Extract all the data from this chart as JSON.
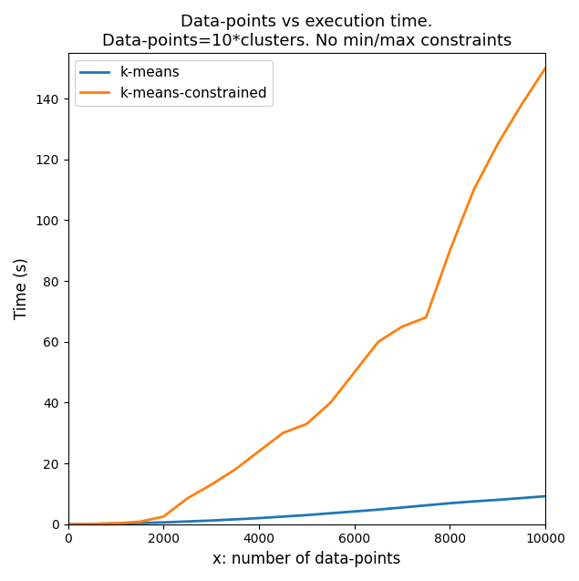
{
  "title": "Data-points vs execution time.\nData-points=10*clusters. No min/max constraints",
  "xlabel": "x: number of data-points",
  "ylabel": "Time (s)",
  "x_kmeans": [
    0,
    500,
    1000,
    1500,
    2000,
    2500,
    3000,
    3500,
    4000,
    4500,
    5000,
    5500,
    6000,
    6500,
    7000,
    7500,
    8000,
    8500,
    9000,
    9500,
    10000
  ],
  "y_kmeans": [
    0.0,
    0.1,
    0.2,
    0.4,
    0.6,
    0.9,
    1.2,
    1.6,
    2.0,
    2.5,
    3.0,
    3.6,
    4.2,
    4.8,
    5.5,
    6.2,
    6.9,
    7.5,
    8.0,
    8.6,
    9.2
  ],
  "x_constrained": [
    0,
    500,
    1000,
    1500,
    2000,
    2500,
    3000,
    3500,
    4000,
    4500,
    5000,
    5500,
    6000,
    6500,
    7000,
    7500,
    8000,
    8500,
    9000,
    9500,
    10000
  ],
  "y_constrained": [
    0.0,
    0.1,
    0.3,
    0.8,
    2.5,
    8.5,
    13.0,
    18.0,
    24.0,
    30.0,
    33.0,
    40.0,
    50.0,
    60.0,
    65.0,
    68.0,
    90.0,
    110.0,
    125.0,
    138.0,
    150.0
  ],
  "color_kmeans": "#1f77b4",
  "color_constrained": "#ff7f0e",
  "legend_kmeans": "k-means",
  "legend_constrained": "k-means-constrained",
  "xlim": [
    0,
    10000
  ],
  "ylim": [
    0,
    155
  ],
  "title_fontsize": 13,
  "label_fontsize": 12,
  "linewidth": 2
}
